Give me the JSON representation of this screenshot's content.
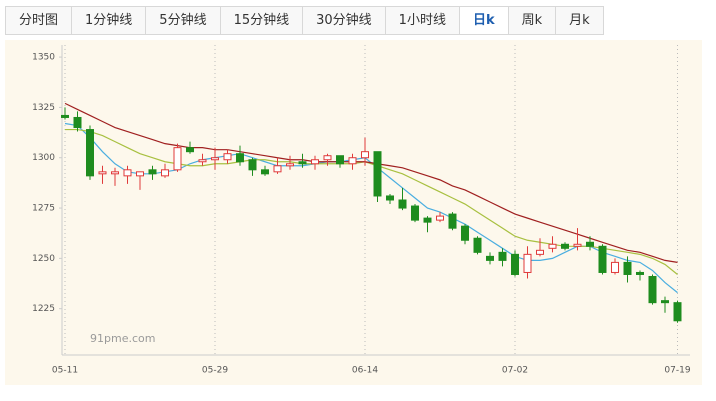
{
  "tabs": [
    {
      "label": "分时图",
      "active": false
    },
    {
      "label": "1分钟线",
      "active": false
    },
    {
      "label": "5分钟线",
      "active": false
    },
    {
      "label": "15分钟线",
      "active": false
    },
    {
      "label": "30分钟线",
      "active": false
    },
    {
      "label": "1小时线",
      "active": false
    },
    {
      "label": "日k",
      "active": true
    },
    {
      "label": "周k",
      "active": false
    },
    {
      "label": "月k",
      "active": false
    }
  ],
  "chart_data": {
    "type": "candlestick",
    "watermark": "91pme.com",
    "categories": [
      "05-11",
      null,
      null,
      null,
      null,
      null,
      null,
      null,
      null,
      null,
      null,
      null,
      "05-29",
      null,
      null,
      null,
      null,
      null,
      null,
      null,
      null,
      null,
      null,
      null,
      "06-14",
      null,
      null,
      null,
      null,
      null,
      null,
      null,
      null,
      null,
      null,
      null,
      "07-02",
      null,
      null,
      null,
      null,
      null,
      null,
      null,
      null,
      null,
      null,
      null,
      null,
      "07-19"
    ],
    "open": [
      1321,
      1320,
      1314,
      1292,
      1292,
      1291,
      1291,
      1294,
      1291,
      1294,
      1305,
      1298,
      1299,
      1299,
      1302,
      1299,
      1294,
      1293,
      1296,
      1298,
      1297,
      1299,
      1301,
      1297,
      1300,
      1303,
      1281,
      1279,
      1276,
      1270,
      1269,
      1272,
      1266,
      1260,
      1251,
      1253,
      1252,
      1243,
      1252,
      1255,
      1257,
      1256,
      1258,
      1256,
      1243,
      1248,
      1243,
      1241,
      1229,
      1228
    ],
    "high": [
      1325,
      1323,
      1316,
      1296,
      1295,
      1296,
      1293,
      1296,
      1297,
      1307,
      1308,
      1302,
      1305,
      1304,
      1306,
      1300,
      1296,
      1300,
      1301,
      1302,
      1301,
      1302,
      1301,
      1302,
      1310,
      1303,
      1282,
      1285,
      1277,
      1271,
      1273,
      1273,
      1267,
      1261,
      1253,
      1255,
      1254,
      1256,
      1260,
      1261,
      1258,
      1265,
      1261,
      1257,
      1250,
      1251,
      1244,
      1242,
      1231,
      1229
    ],
    "low": [
      1319,
      1313,
      1289,
      1287,
      1286,
      1287,
      1284,
      1289,
      1290,
      1293,
      1302,
      1296,
      1294,
      1297,
      1296,
      1291,
      1291,
      1292,
      1294,
      1295,
      1294,
      1296,
      1295,
      1294,
      1296,
      1278,
      1277,
      1274,
      1268,
      1263,
      1268,
      1264,
      1257,
      1252,
      1247,
      1246,
      1241,
      1240,
      1251,
      1253,
      1254,
      1254,
      1254,
      1242,
      1242,
      1238,
      1239,
      1227,
      1223,
      1218
    ],
    "close": [
      1320,
      1315,
      1291,
      1293,
      1293,
      1294,
      1293,
      1292,
      1294,
      1305,
      1303,
      1299,
      1300,
      1302,
      1298,
      1294,
      1292,
      1296,
      1297,
      1297,
      1299,
      1301,
      1297,
      1300,
      1303,
      1281,
      1279,
      1275,
      1269,
      1268,
      1271,
      1265,
      1259,
      1253,
      1249,
      1249,
      1242,
      1252,
      1254,
      1257,
      1255,
      1257,
      1256,
      1243,
      1248,
      1242,
      1242,
      1228,
      1228,
      1219
    ],
    "up_color": "#e03a3a",
    "down_color": "#1e8c1e",
    "series": [
      {
        "type": "line",
        "color": "#4aaee0",
        "values": [
          1317,
          1316,
          1310,
          1303,
          1297,
          1293,
          1292,
          1292,
          1293,
          1294,
          1297,
          1299,
          1300,
          1301,
          1302,
          1300,
          1298,
          1296,
          1296,
          1296,
          1297,
          1298,
          1298,
          1299,
          1300,
          1295,
          1290,
          1285,
          1280,
          1275,
          1273,
          1270,
          1267,
          1263,
          1259,
          1255,
          1251,
          1249,
          1249,
          1250,
          1253,
          1256,
          1256,
          1253,
          1251,
          1249,
          1248,
          1244,
          1238,
          1233
        ]
      },
      {
        "type": "line",
        "color": "#a8c040",
        "values": [
          1314,
          1314,
          1313,
          1311,
          1308,
          1305,
          1302,
          1300,
          1298,
          1297,
          1296,
          1296,
          1297,
          1297,
          1298,
          1299,
          1299,
          1298,
          1298,
          1297,
          1297,
          1297,
          1297,
          1297,
          1298,
          1296,
          1294,
          1292,
          1289,
          1286,
          1283,
          1280,
          1277,
          1273,
          1269,
          1265,
          1261,
          1259,
          1258,
          1257,
          1256,
          1256,
          1256,
          1255,
          1254,
          1253,
          1252,
          1250,
          1247,
          1242
        ]
      },
      {
        "type": "line",
        "color": "#a02020",
        "values": [
          1327,
          1324,
          1321,
          1318,
          1315,
          1313,
          1311,
          1309,
          1307,
          1306,
          1305,
          1305,
          1304,
          1304,
          1303,
          1302,
          1301,
          1300,
          1299,
          1299,
          1298,
          1298,
          1298,
          1298,
          1298,
          1297,
          1296,
          1295,
          1293,
          1291,
          1289,
          1286,
          1284,
          1281,
          1278,
          1275,
          1272,
          1270,
          1268,
          1266,
          1264,
          1262,
          1260,
          1258,
          1256,
          1254,
          1253,
          1251,
          1249,
          1248
        ]
      }
    ],
    "ylim": [
      1202,
      1356
    ],
    "yticks": [
      1350,
      1325,
      1300,
      1275,
      1250,
      1225
    ],
    "grid": true
  }
}
